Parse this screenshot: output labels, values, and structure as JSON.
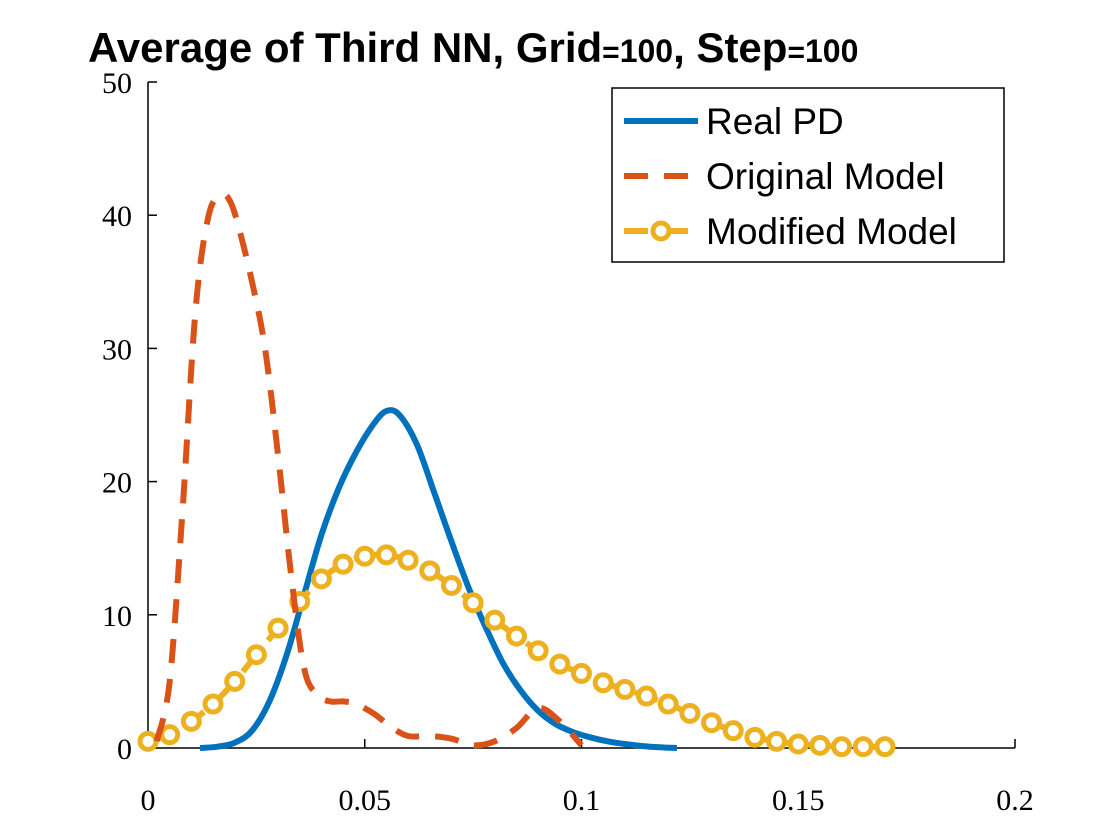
{
  "chart_data": {
    "type": "line",
    "title": "Average of Third NN, Grid=100, Step=100",
    "title_parts": {
      "main1": "Average of Third NN, Grid",
      "eq1": "=",
      "num1": "100",
      "main2": ", Step",
      "eq2": "=",
      "num2": "100"
    },
    "xlabel": "",
    "ylabel": "",
    "xlim": [
      0,
      0.2
    ],
    "ylim": [
      0,
      50
    ],
    "xticks": [
      0,
      0.05,
      0.1,
      0.15,
      0.2
    ],
    "xtick_labels": [
      "0",
      "0.05",
      "0.1",
      "0.15",
      "0.2"
    ],
    "yticks": [
      0,
      10,
      20,
      30,
      40,
      50
    ],
    "ytick_labels": [
      "0",
      "10",
      "20",
      "30",
      "40",
      "50"
    ],
    "grid": false,
    "legend_position": "top-right",
    "series": [
      {
        "name": "Real PD",
        "color": "#0072BD",
        "style": "solid",
        "marker": "none",
        "x": [
          0.012,
          0.016,
          0.02,
          0.024,
          0.028,
          0.032,
          0.036,
          0.04,
          0.044,
          0.048,
          0.052,
          0.055,
          0.058,
          0.062,
          0.066,
          0.07,
          0.074,
          0.078,
          0.082,
          0.086,
          0.09,
          0.094,
          0.098,
          0.102,
          0.106,
          0.11,
          0.114,
          0.118,
          0.122
        ],
        "y": [
          0.0,
          0.1,
          0.4,
          1.3,
          3.5,
          7.0,
          11.5,
          16.0,
          19.5,
          22.2,
          24.3,
          25.3,
          25.0,
          22.8,
          19.2,
          15.5,
          12.0,
          9.0,
          6.3,
          4.3,
          2.8,
          1.8,
          1.2,
          0.8,
          0.5,
          0.3,
          0.15,
          0.05,
          0.0
        ]
      },
      {
        "name": "Original Model",
        "color": "#D95319",
        "style": "dashed",
        "marker": "none",
        "x": [
          0.002,
          0.005,
          0.008,
          0.011,
          0.014,
          0.017,
          0.019,
          0.021,
          0.024,
          0.027,
          0.03,
          0.033,
          0.036,
          0.039,
          0.042,
          0.045,
          0.048,
          0.052,
          0.056,
          0.06,
          0.065,
          0.07,
          0.075,
          0.08,
          0.085,
          0.09,
          0.095,
          0.1
        ],
        "y": [
          0.5,
          5.0,
          18.0,
          33.0,
          40.0,
          41.5,
          41.0,
          39.0,
          35.0,
          30.0,
          22.0,
          13.0,
          6.0,
          4.0,
          3.5,
          3.5,
          3.3,
          2.6,
          1.6,
          0.9,
          0.9,
          0.7,
          0.2,
          0.5,
          1.5,
          3.0,
          2.0,
          0.2
        ]
      },
      {
        "name": "Modified Model",
        "color": "#EDB120",
        "style": "dashed",
        "marker": "circle",
        "x": [
          0.0,
          0.005,
          0.01,
          0.015,
          0.02,
          0.025,
          0.03,
          0.035,
          0.04,
          0.045,
          0.05,
          0.055,
          0.06,
          0.065,
          0.07,
          0.075,
          0.08,
          0.085,
          0.09,
          0.095,
          0.1,
          0.105,
          0.11,
          0.115,
          0.12,
          0.125,
          0.13,
          0.135,
          0.14,
          0.145,
          0.15,
          0.155,
          0.16,
          0.165,
          0.17
        ],
        "y": [
          0.5,
          1.0,
          2.0,
          3.3,
          5.0,
          7.0,
          9.0,
          11.0,
          12.7,
          13.8,
          14.4,
          14.5,
          14.1,
          13.3,
          12.2,
          10.9,
          9.6,
          8.4,
          7.3,
          6.3,
          5.6,
          4.9,
          4.4,
          3.9,
          3.3,
          2.6,
          1.9,
          1.3,
          0.8,
          0.5,
          0.3,
          0.2,
          0.1,
          0.1,
          0.1
        ]
      }
    ]
  }
}
